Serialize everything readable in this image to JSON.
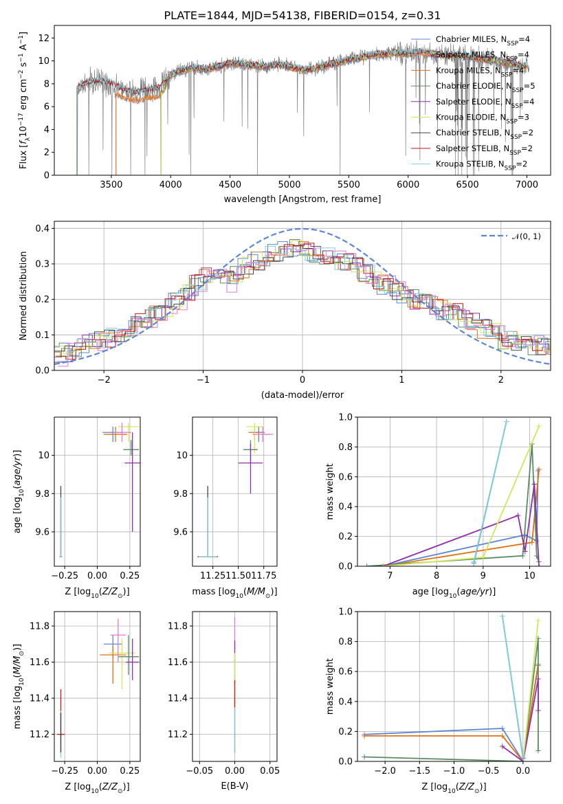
{
  "chart_data": [
    {
      "id": "spectrum",
      "type": "line",
      "title": "PLATE=1844, MJD=54138, FIBERID=0154, z=0.31",
      "xlabel": "wavelength [Angstrom, rest frame]",
      "ylabel": "Flux [f_λ 10^-17 erg cm^-2 s^-1 A^-1]",
      "xlim": [
        3020,
        7200
      ],
      "ylim": [
        0,
        13.1
      ],
      "xticks": [
        3500,
        4000,
        4500,
        5000,
        5500,
        6000,
        6500,
        7000
      ],
      "yticks": [
        0,
        2,
        4,
        6,
        8,
        10,
        12
      ],
      "grid": false,
      "legend_position": "top-right",
      "series": [
        {
          "name": "Chabrier MILES, N_SSP=4",
          "color": "#5b86d6",
          "x_start": 3540
        },
        {
          "name": "Salpeter MILES, N_SSP=4",
          "color": "#f5a26b",
          "x_start": 3540
        },
        {
          "name": "Kroupa MILES, N_SSP=4",
          "color": "#e07010",
          "x_start": 3540
        },
        {
          "name": "Chabrier ELODIE, N_SSP=5",
          "color": "#5a8a62",
          "x_start": 3920
        },
        {
          "name": "Salpeter ELODIE, N_SSP=4",
          "color": "#8f2fa8",
          "x_start": 3920
        },
        {
          "name": "Kroupa ELODIE, N_SSP=3",
          "color": "#cfe85a",
          "x_start": 3920
        },
        {
          "name": "Chabrier STELIB, N_SSP=2",
          "color": "#444444",
          "x_start": 3210
        },
        {
          "name": "Salpeter STELIB, N_SSP=2",
          "color": "#c21616",
          "x_start": 3210
        },
        {
          "name": "Kroupa STELIB, N_SSP=2",
          "color": "#7fd0da",
          "x_start": 3210
        }
      ],
      "data_color": "#808080",
      "continuum": {
        "x": [
          3210,
          3300,
          3400,
          3500,
          3600,
          3700,
          3800,
          3900,
          3960,
          4000,
          4100,
          4200,
          4300,
          4400,
          4500,
          4600,
          4700,
          4800,
          4900,
          5000,
          5100,
          5200,
          5300,
          5400,
          5500,
          5600,
          5700,
          5800,
          5900,
          6000,
          6100,
          6200,
          6300,
          6400,
          6500,
          6600,
          6700,
          6800,
          6900,
          7000
        ],
        "y": [
          7.6,
          8.1,
          8.2,
          8.0,
          7.5,
          7.2,
          7.4,
          7.6,
          8.3,
          8.8,
          9.2,
          9.4,
          9.3,
          9.5,
          9.8,
          9.7,
          9.6,
          9.5,
          9.7,
          9.5,
          9.2,
          9.3,
          9.6,
          9.8,
          10.1,
          10.3,
          10.5,
          10.6,
          10.7,
          10.6,
          10.8,
          10.6,
          10.5,
          10.5,
          10.4,
          10.2,
          10.1,
          9.9,
          9.7,
          9.5
        ]
      }
    },
    {
      "id": "residuals",
      "type": "histogram",
      "xlabel": "(data-model)/error",
      "ylabel": "Normed distribution",
      "xlim": [
        -2.5,
        2.5
      ],
      "ylim": [
        0,
        0.42
      ],
      "xticks": [
        -2,
        -1,
        0,
        1,
        2
      ],
      "yticks": [
        0.0,
        0.1,
        0.2,
        0.3,
        0.4
      ],
      "grid": true,
      "legend_position": "top-right",
      "reference": {
        "name": "𝒩(0, 1)",
        "mean": 0,
        "sigma": 1,
        "color": "#5b86d6"
      },
      "bin_width": 0.1,
      "profile": {
        "x": [
          -2.5,
          -2.0,
          -1.5,
          -1.0,
          -0.8,
          -0.5,
          -0.2,
          0.0,
          0.3,
          0.5,
          0.8,
          1.0,
          1.5,
          2.0,
          2.5
        ],
        "y": [
          0.04,
          0.09,
          0.16,
          0.26,
          0.25,
          0.31,
          0.34,
          0.34,
          0.31,
          0.29,
          0.24,
          0.21,
          0.16,
          0.09,
          0.06
        ]
      },
      "series": [
        "#5b86d6",
        "#e07010",
        "#5a8a62",
        "#8f2fa8",
        "#cfe85a",
        "#444444",
        "#c21616",
        "#7fd0da",
        "#e37ad0"
      ]
    },
    {
      "id": "age_vs_Z",
      "type": "scatter",
      "xlabel": "Z [log10(Z/Z☉)]",
      "ylabel": "age [log10(age/yr)]",
      "xlim": [
        -0.33,
        0.33
      ],
      "ylim": [
        9.42,
        10.2
      ],
      "xticks": [
        -0.25,
        0.0,
        0.25
      ],
      "xtick_labels": [
        "−0.25",
        "0.00",
        "0.25"
      ],
      "yticks": [
        9.6,
        9.8,
        10.0
      ],
      "grid": true,
      "points": [
        {
          "x": 0.12,
          "y": 10.12,
          "xerr": 0.08,
          "yerr": [
            0.05,
            0.03
          ],
          "color": "#5b86d6"
        },
        {
          "x": 0.14,
          "y": 10.11,
          "xerr": 0.09,
          "yerr": [
            0.04,
            0.04
          ],
          "color": "#e07010"
        },
        {
          "x": 0.24,
          "y": 10.15,
          "xerr": 0.08,
          "yerr": [
            0.08,
            0.02
          ],
          "color": "#cfe85a"
        },
        {
          "x": 0.26,
          "y": 10.03,
          "xerr": 0.06,
          "yerr": [
            0.03,
            0.05
          ],
          "color": "#5a8a62"
        },
        {
          "x": 0.27,
          "y": 9.96,
          "xerr": 0.06,
          "yerr": [
            0.36,
            0.16
          ],
          "color": "#8f2fa8"
        },
        {
          "x": 0.19,
          "y": 10.12,
          "xerr": 0.07,
          "yerr": [
            0.05,
            0.05
          ],
          "color": "#e37ad0"
        },
        {
          "x": -0.28,
          "y": 9.47,
          "xerr": 0.01,
          "yerr": [
            0.0,
            0.37
          ],
          "color": "#444444"
        },
        {
          "x": -0.28,
          "y": 9.47,
          "xerr": 0.01,
          "yerr": [
            0.0,
            0.3
          ],
          "color": "#c21616"
        },
        {
          "x": -0.28,
          "y": 9.47,
          "xerr": 0.01,
          "yerr": [
            0.0,
            0.31
          ],
          "color": "#7fd0da"
        }
      ]
    },
    {
      "id": "age_vs_mass",
      "type": "scatter",
      "xlabel": "mass [log10(M/M☉)]",
      "xlim": [
        11.05,
        11.88
      ],
      "ylim": [
        9.42,
        10.2
      ],
      "xticks": [
        11.25,
        11.5,
        11.75
      ],
      "xtick_labels": [
        "11.25",
        "11.50",
        "11.75"
      ],
      "yticks": [
        9.6,
        9.8,
        10.0
      ],
      "grid": true,
      "points": [
        {
          "x": 11.7,
          "y": 10.12,
          "xerr": 0.06,
          "yerr": [
            0.05,
            0.03
          ],
          "color": "#5b86d6"
        },
        {
          "x": 11.66,
          "y": 10.12,
          "xerr": 0.06,
          "yerr": [
            0.04,
            0.03
          ],
          "color": "#e07010"
        },
        {
          "x": 11.66,
          "y": 10.15,
          "xerr": 0.08,
          "yerr": [
            0.14,
            0.02
          ],
          "color": "#cfe85a"
        },
        {
          "x": 11.62,
          "y": 10.03,
          "xerr": 0.07,
          "yerr": [
            0.07,
            0.05
          ],
          "color": "#5a8a62"
        },
        {
          "x": 11.62,
          "y": 9.96,
          "xerr": 0.12,
          "yerr": [
            0.16,
            0.1
          ],
          "color": "#8f2fa8"
        },
        {
          "x": 11.74,
          "y": 10.11,
          "xerr": 0.1,
          "yerr": [
            0.04,
            0.04
          ],
          "color": "#e37ad0"
        },
        {
          "x": 11.2,
          "y": 9.47,
          "xerr": 0.1,
          "yerr": [
            0.0,
            0.37
          ],
          "color": "#444444"
        },
        {
          "x": 11.2,
          "y": 9.47,
          "xerr": 0.1,
          "yerr": [
            0.0,
            0.3
          ],
          "color": "#c21616"
        },
        {
          "x": 11.2,
          "y": 9.47,
          "xerr": 0.09,
          "yerr": [
            0.0,
            0.31
          ],
          "color": "#7fd0da"
        }
      ]
    },
    {
      "id": "weight_vs_age",
      "type": "line",
      "xlabel": "age [log10(age/yr)]",
      "ylabel": "mass weight",
      "xlim": [
        6.3,
        10.45
      ],
      "ylim": [
        0,
        1.0
      ],
      "xticks": [
        7,
        8,
        9,
        10
      ],
      "yticks": [
        0.0,
        0.2,
        0.4,
        0.6,
        0.8,
        1.0
      ],
      "grid": true,
      "series": [
        {
          "color": "#5b86d6",
          "x": [
            6.85,
            9.9,
            10.15,
            10.18
          ],
          "y": [
            0.0,
            0.21,
            0.17,
            0.64
          ]
        },
        {
          "color": "#e07010",
          "x": [
            6.85,
            10.05,
            10.2
          ],
          "y": [
            0.0,
            0.16,
            0.65
          ]
        },
        {
          "color": "#5a8a62",
          "x": [
            6.5,
            9.85,
            10.05,
            10.15,
            10.2
          ],
          "y": [
            0.0,
            0.07,
            0.82,
            0.07,
            0.03
          ]
        },
        {
          "color": "#8f2fa8",
          "x": [
            6.85,
            9.75,
            9.9,
            10.1,
            10.2
          ],
          "y": [
            0.0,
            0.34,
            0.1,
            0.55,
            0.0
          ]
        },
        {
          "color": "#cfe85a",
          "x": [
            6.85,
            9.0,
            10.2
          ],
          "y": [
            0.0,
            0.06,
            0.94
          ]
        },
        {
          "color": "#5b86d6",
          "x": [
            8.8,
            9.5
          ],
          "y": [
            0.02,
            0.97
          ]
        },
        {
          "color": "#7fd0da",
          "x": [
            8.8,
            9.5
          ],
          "y": [
            0.03,
            0.97
          ]
        }
      ]
    },
    {
      "id": "mass_vs_Z",
      "type": "scatter",
      "xlabel": "Z [log10(Z/Z☉)]",
      "ylabel": "mass [log10(M/M☉)]",
      "xlim": [
        -0.33,
        0.33
      ],
      "ylim": [
        11.05,
        11.88
      ],
      "xticks": [
        -0.25,
        0.0,
        0.25
      ],
      "xtick_labels": [
        "−0.25",
        "0.00",
        "0.25"
      ],
      "yticks": [
        11.2,
        11.4,
        11.6,
        11.8
      ],
      "grid": true,
      "points": [
        {
          "x": 0.12,
          "y": 11.7,
          "xerr": 0.07,
          "yerr": [
            0.08,
            0.05
          ],
          "color": "#5b86d6"
        },
        {
          "x": 0.12,
          "y": 11.64,
          "xerr": 0.1,
          "yerr": [
            0.16,
            0.05
          ],
          "color": "#e07010"
        },
        {
          "x": 0.19,
          "y": 11.65,
          "xerr": 0.1,
          "yerr": [
            0.2,
            0.08
          ],
          "color": "#cfe85a"
        },
        {
          "x": 0.24,
          "y": 11.63,
          "xerr": 0.08,
          "yerr": [
            0.1,
            0.12
          ],
          "color": "#5a8a62"
        },
        {
          "x": 0.27,
          "y": 11.6,
          "xerr": 0.05,
          "yerr": [
            0.1,
            0.13
          ],
          "color": "#8f2fa8"
        },
        {
          "x": 0.16,
          "y": 11.75,
          "xerr": 0.06,
          "yerr": [
            0.15,
            0.09
          ],
          "color": "#e37ad0"
        },
        {
          "x": -0.28,
          "y": 11.2,
          "xerr": 0.03,
          "yerr": [
            0.1,
            0.25
          ],
          "color": "#c21616"
        },
        {
          "x": -0.28,
          "y": 11.2,
          "xerr": 0.01,
          "yerr": [
            0.13,
            0.13
          ],
          "color": "#7fd0da"
        },
        {
          "x": -0.28,
          "y": 11.2,
          "xerr": 0.01,
          "yerr": [
            0.1,
            0.12
          ],
          "color": "#444444"
        }
      ]
    },
    {
      "id": "mass_vs_ebv",
      "type": "scatter",
      "xlabel": "E(B-V)",
      "xlim": [
        -0.06,
        0.06
      ],
      "ylim": [
        11.05,
        11.88
      ],
      "xticks": [
        -0.05,
        0.0,
        0.05
      ],
      "xtick_labels": [
        "−0.05",
        "0.00",
        "0.05"
      ],
      "yticks": [
        11.2,
        11.4,
        11.6,
        11.8
      ],
      "grid": true,
      "points": [
        {
          "x": 0.0,
          "y": 11.75,
          "xerr": 0,
          "yerr": [
            0.08,
            0.1
          ],
          "color": "#e37ad0"
        },
        {
          "x": 0.0,
          "y": 11.62,
          "xerr": 0,
          "yerr": [
            0.14,
            0.1
          ],
          "color": "#8f2fa8"
        },
        {
          "x": 0.0,
          "y": 11.55,
          "xerr": 0,
          "yerr": [
            0.2,
            0.1
          ],
          "color": "#cfe85a"
        },
        {
          "x": 0.0,
          "y": 11.3,
          "xerr": 0,
          "yerr": [
            0.2,
            0.2
          ],
          "color": "#c21616"
        },
        {
          "x": 0.0,
          "y": 11.25,
          "xerr": 0,
          "yerr": [
            0.15,
            0.1
          ],
          "color": "#7fd0da"
        }
      ]
    },
    {
      "id": "weight_vs_Z",
      "type": "line",
      "xlabel": "Z [log10(Z/Z☉)]",
      "ylabel": "mass weight",
      "xlim": [
        -2.4,
        0.4
      ],
      "ylim": [
        0,
        1.0
      ],
      "xticks": [
        -2.0,
        -1.5,
        -1.0,
        -0.5,
        0.0
      ],
      "xtick_labels": [
        "−2.0",
        "−1.5",
        "−1.0",
        "−0.5",
        "0.0"
      ],
      "yticks": [
        0.0,
        0.2,
        0.4,
        0.6,
        0.8,
        1.0
      ],
      "grid": true,
      "series": [
        {
          "color": "#5b86d6",
          "x": [
            -2.3,
            -0.3,
            0.0,
            0.22
          ],
          "y": [
            0.18,
            0.22,
            0.0,
            0.64
          ]
        },
        {
          "color": "#e07010",
          "x": [
            -2.3,
            -0.3,
            0.0,
            0.22
          ],
          "y": [
            0.17,
            0.17,
            0.0,
            0.65
          ]
        },
        {
          "color": "#5a8a62",
          "x": [
            -2.3,
            0.0,
            0.22,
            0.22
          ],
          "y": [
            0.03,
            0.0,
            0.82,
            0.07
          ]
        },
        {
          "color": "#8f2fa8",
          "x": [
            -0.3,
            0.0,
            0.22,
            0.22
          ],
          "y": [
            0.1,
            0.0,
            0.55,
            0.34
          ]
        },
        {
          "color": "#cfe85a",
          "x": [
            0.0,
            0.22
          ],
          "y": [
            0.0,
            0.94
          ]
        },
        {
          "color": "#5b86d6",
          "x": [
            -0.3,
            0.0
          ],
          "y": [
            0.97,
            0.02
          ]
        },
        {
          "color": "#7fd0da",
          "x": [
            -0.3,
            0.0
          ],
          "y": [
            0.97,
            0.03
          ]
        }
      ]
    }
  ]
}
